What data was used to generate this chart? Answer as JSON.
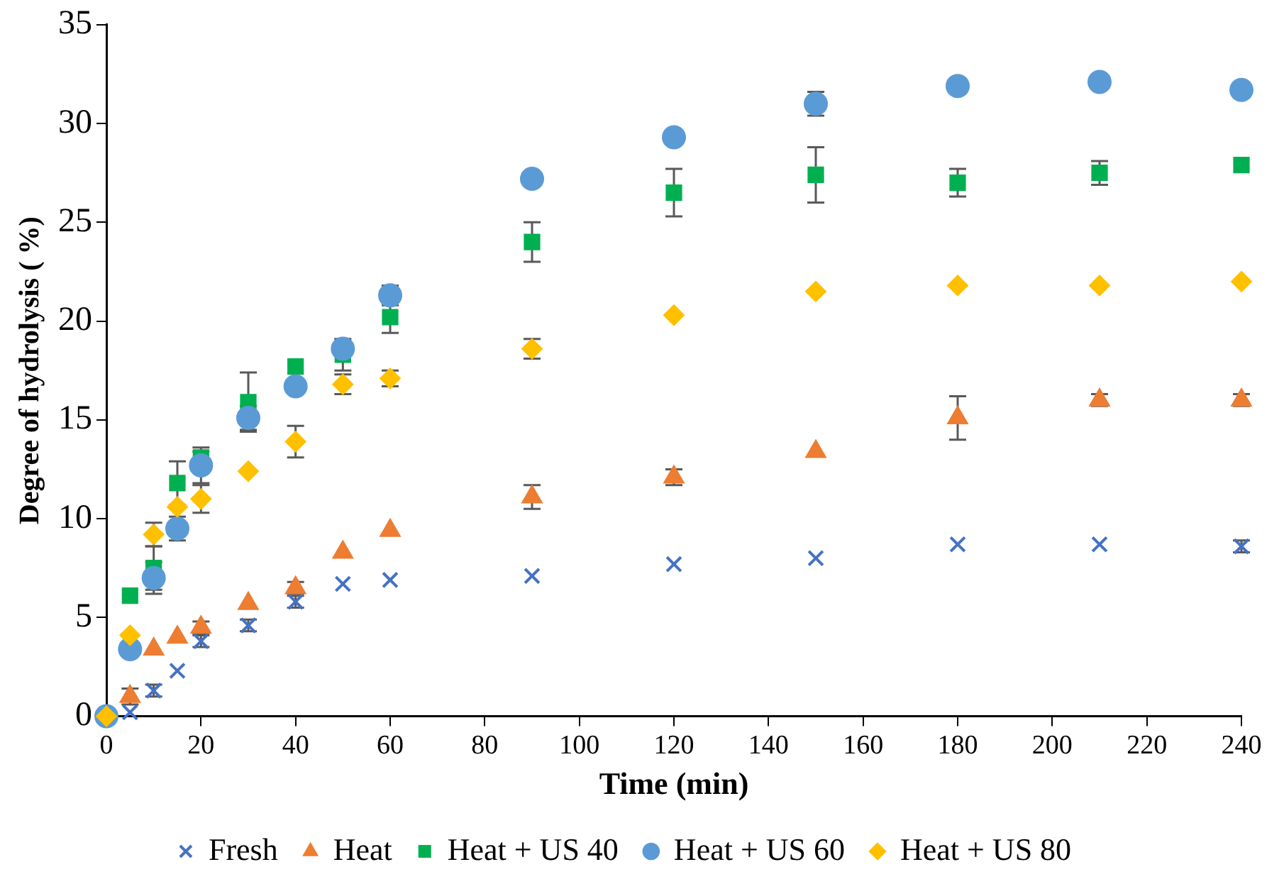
{
  "chart_data": {
    "type": "scatter",
    "xlabel": "Time (min)",
    "ylabel": "Degree of hydrolysis ( %)",
    "x": [
      0,
      5,
      10,
      15,
      20,
      30,
      40,
      50,
      60,
      90,
      120,
      150,
      180,
      210,
      240
    ],
    "xlim": [
      0,
      240
    ],
    "xticks": [
      0,
      20,
      40,
      60,
      80,
      100,
      120,
      140,
      160,
      180,
      200,
      220,
      240
    ],
    "ylim": [
      0,
      35
    ],
    "yticks": [
      0,
      5,
      10,
      15,
      20,
      25,
      30,
      35
    ],
    "grid": false,
    "legend": "bottom",
    "series": [
      {
        "name": "Fresh",
        "color": "#4472c4",
        "marker": "cross",
        "values": [
          null,
          0.2,
          1.3,
          2.3,
          3.8,
          4.6,
          5.8,
          6.7,
          6.9,
          7.1,
          7.7,
          8.0,
          8.7,
          8.7,
          8.6
        ],
        "errors": [
          null,
          null,
          0.3,
          null,
          0.3,
          0.3,
          0.3,
          null,
          null,
          null,
          null,
          null,
          null,
          null,
          0.3
        ]
      },
      {
        "name": "Heat",
        "color": "#ed7d31",
        "marker": "triangle",
        "values": [
          null,
          1.0,
          3.4,
          4.0,
          4.5,
          5.7,
          6.5,
          8.3,
          9.4,
          11.1,
          12.1,
          13.4,
          15.1,
          16.0,
          16.0
        ],
        "errors": [
          null,
          0.4,
          null,
          null,
          0.3,
          null,
          0.3,
          null,
          null,
          0.6,
          0.4,
          null,
          1.1,
          0.3,
          0.3
        ]
      },
      {
        "name": "Heat + US 40",
        "color": "#00b050",
        "marker": "square",
        "values": [
          null,
          6.1,
          7.5,
          11.8,
          13.1,
          15.9,
          17.7,
          18.3,
          20.2,
          24.0,
          26.5,
          27.4,
          27.0,
          27.5,
          27.9
        ],
        "errors": [
          null,
          null,
          1.1,
          1.1,
          0.3,
          1.5,
          null,
          0.8,
          0.8,
          1.0,
          1.2,
          1.4,
          0.7,
          0.6,
          null
        ]
      },
      {
        "name": "Heat + US 60",
        "color": "#5b9bd5",
        "marker": "circle",
        "values": [
          0,
          3.4,
          7.0,
          9.5,
          12.7,
          15.1,
          16.7,
          18.6,
          21.3,
          27.2,
          29.3,
          31.0,
          31.9,
          32.1,
          31.7
        ],
        "errors": [
          null,
          null,
          0.8,
          0.6,
          0.9,
          0.6,
          null,
          null,
          0.5,
          null,
          null,
          0.6,
          null,
          null,
          null
        ]
      },
      {
        "name": "Heat + US 80",
        "color": "#ffc000",
        "marker": "diamond",
        "values": [
          0,
          4.1,
          9.2,
          10.6,
          11.0,
          12.4,
          13.9,
          16.8,
          17.1,
          18.6,
          20.3,
          21.5,
          21.8,
          21.8,
          22.0
        ],
        "errors": [
          null,
          null,
          0.6,
          null,
          0.7,
          null,
          0.8,
          0.5,
          0.4,
          0.5,
          null,
          null,
          null,
          null,
          null
        ]
      }
    ]
  }
}
